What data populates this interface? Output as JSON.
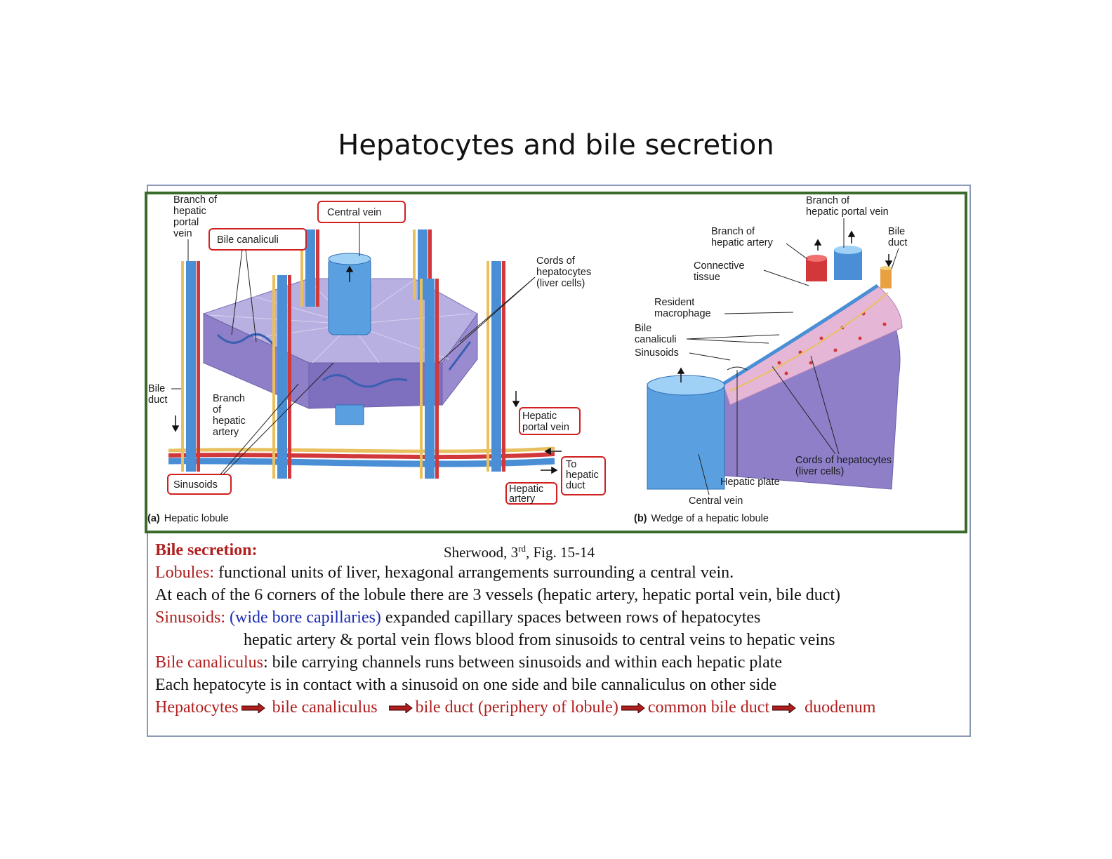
{
  "title": "Hepatocytes and bile secretion",
  "figure_a": {
    "labels": {
      "branch_portal_vein": [
        "Branch of",
        "hepatic",
        "portal",
        "vein"
      ],
      "bile_canaliculi": "Bile canaliculi",
      "central_vein": "Central vein",
      "cords": [
        "Cords of",
        "hepatocytes",
        "(liver cells)"
      ],
      "bile_duct": [
        "Bile",
        "duct"
      ],
      "branch_hepatic_artery": [
        "Branch",
        "of",
        "hepatic",
        "artery"
      ],
      "hepatic_portal_vein": [
        "Hepatic",
        "portal vein"
      ],
      "to_hepatic_duct": [
        "To",
        "hepatic",
        "duct"
      ],
      "hepatic_artery": [
        "Hepatic",
        "artery"
      ],
      "sinusoids": "Sinusoids"
    },
    "caption_letter": "(a)",
    "caption": "Hepatic lobule"
  },
  "figure_b": {
    "labels": {
      "branch_portal_vein": [
        "Branch of",
        "hepatic portal vein"
      ],
      "branch_hepatic_artery": [
        "Branch of",
        "hepatic artery"
      ],
      "bile_duct": [
        "Bile",
        "duct"
      ],
      "connective_tissue": [
        "Connective",
        "tissue"
      ],
      "resident_macrophage": [
        "Resident",
        "macrophage"
      ],
      "bile_canaliculi": [
        "Bile",
        "canaliculi"
      ],
      "sinusoids": "Sinusoids",
      "cords": [
        "Cords of hepatocytes",
        "(liver cells)"
      ],
      "hepatic_plate": "Hepatic plate",
      "central_vein": "Central vein"
    },
    "caption_letter": "(b)",
    "caption": "Wedge of a hepatic lobule"
  },
  "credit": {
    "prefix": "Sherwood, 3",
    "sup": "rd",
    "suffix": ", Fig. 15-14"
  },
  "text": {
    "heading": "Bile secretion:",
    "lobules_term": "Lobules:",
    "lobules_def": " functional units of liver, hexagonal arrangements surrounding a central vein.",
    "corners": "At each of the 6 corners of the lobule there are 3 vessels (hepatic artery, hepatic portal vein, bile duct)",
    "sinusoids_term": "Sinusoids: ",
    "sinusoids_paren": "(wide bore capillaries)",
    "sinusoids_def": " expanded capillary spaces between rows of hepatocytes",
    "flow": "hepatic artery & portal vein flows blood from sinusoids to central veins to hepatic veins",
    "canaliculus_term": "Bile canaliculus",
    "canaliculus_def": ": bile carrying channels runs between sinusoids and within each hepatic plate",
    "contact": "Each hepatocyte is in contact with a sinusoid on one side and bile cannaliculus on other side",
    "pathway": [
      "Hepatocytes",
      "bile canaliculus",
      "bile duct (periphery of lobule)",
      "common bile duct",
      "duodenum"
    ]
  },
  "colors": {
    "accent_red": "#b01e1e",
    "accent_blue": "#1b2bb0",
    "frame_green": "#3a6b2a",
    "vein_blue": "#4a8fd6",
    "artery_red": "#d2383a",
    "bile_yellow": "#e8c060",
    "tissue_purple": "#8f7fc9"
  }
}
